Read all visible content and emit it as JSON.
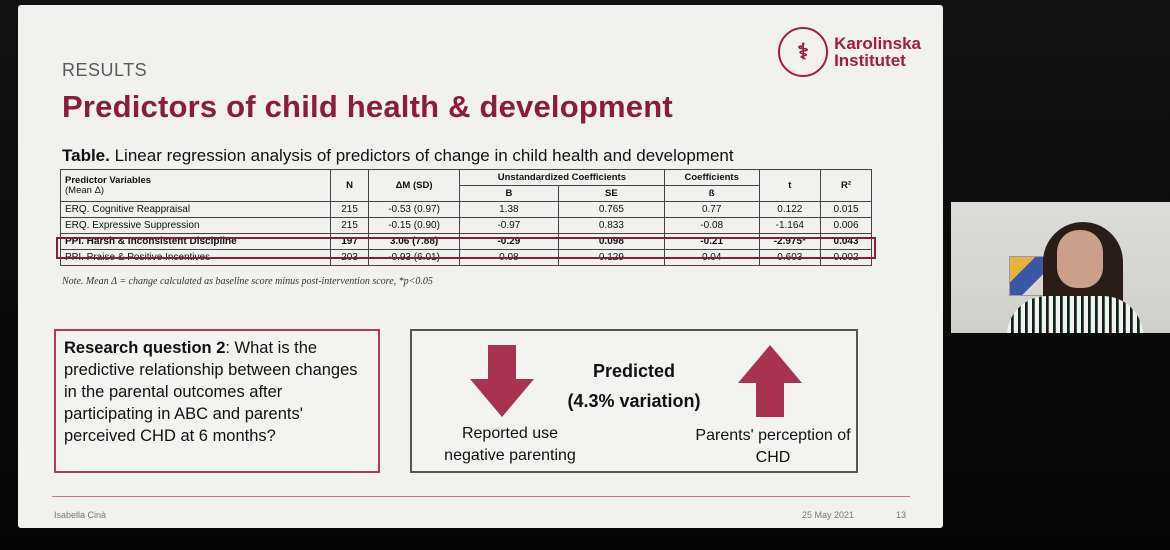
{
  "slide": {
    "section_label": "RESULTS",
    "title": "Predictors of child health & development",
    "logo": {
      "line1": "Karolinska",
      "line2": "Institutet",
      "seal_icon": "karolinska-seal-icon"
    },
    "table_caption_bold": "Table.",
    "table_caption_rest": " Linear regression analysis of predictors of change in child health and development",
    "table": {
      "headers": {
        "predictor": "Predictor Variables",
        "predictor_sub": "(Mean Δ)",
        "n": "N",
        "dm": "ΔM (SD)",
        "unstd": "Unstandardized Coefficients",
        "b": "B",
        "se": "SE",
        "coef": "Coefficients",
        "beta": "ß",
        "t": "t",
        "r2": "R²"
      },
      "rows": [
        {
          "variable": "ERQ. Cognitive Reappraisal",
          "n": "215",
          "dm": "-0.53 (0.97)",
          "b": "1.38",
          "se": "0.765",
          "beta": "0.77",
          "t": "0.122",
          "r2": "0.015"
        },
        {
          "variable": "ERQ. Expressive Suppression",
          "n": "215",
          "dm": "-0.15 (0.90)",
          "b": "-0.97",
          "se": "0.833",
          "beta": "-0.08",
          "t": "-1.164",
          "r2": "0.006"
        },
        {
          "variable": "PPI. Harsh & Inconsistent Discipline",
          "n": "197",
          "dm": "3.06 (7.88)",
          "b": "-0.29",
          "se": "0.098",
          "beta": "-0.21",
          "t": "-2.975*",
          "r2": "0.043"
        },
        {
          "variable": "PPI. Praise & Positive Incentives",
          "n": "203",
          "dm": "-0.93 (6.01)",
          "b": "0.08",
          "se": "0.129",
          "beta": "0.04",
          "t": "0.603",
          "r2": "0.002"
        }
      ]
    },
    "note": "Note. Mean Δ = change calculated as baseline score minus post-intervention score, *p<0.05",
    "research_question": {
      "bold": "Research question 2",
      "text": ": What is the predictive relationship between changes in the parental outcomes after participating in ABC and parents' perceived CHD at 6 months?"
    },
    "prediction": {
      "title": "Predicted",
      "subtitle": "(4.3% variation)",
      "left_label": "Reported use negative parenting",
      "right_label": "Parents' perception of CHD",
      "arrow_color": "#a8324f"
    },
    "footer": {
      "author": "Isabella Cinà",
      "date": "25 May 2021",
      "page": "13"
    }
  },
  "colors": {
    "accent": "#8b1c3b",
    "arrow": "#a8324f"
  }
}
